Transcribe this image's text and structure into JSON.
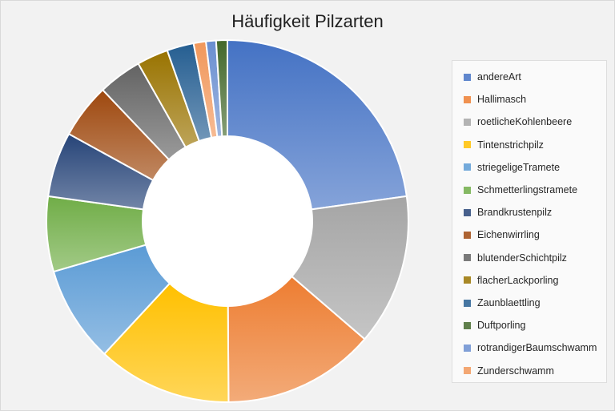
{
  "chart_data": {
    "type": "pie",
    "variant": "doughnut",
    "title": "Häufigkeit Pilzarten",
    "legend_position": "right",
    "slices": [
      {
        "label": "andereArt",
        "value": 22.8,
        "color": "#4472c4"
      },
      {
        "label": "Hallimasch",
        "value": 13.6,
        "color": "#ed7d31"
      },
      {
        "label": "roetlicheKohlenbeere",
        "value": 13.5,
        "color": "#a5a5a5"
      },
      {
        "label": "Tintenstrichpilz",
        "value": 12.0,
        "color": "#ffc000"
      },
      {
        "label": "striegeligeTramete",
        "value": 8.6,
        "color": "#5b9bd5"
      },
      {
        "label": "Schmetterlingstramete",
        "value": 6.7,
        "color": "#70ad47"
      },
      {
        "label": "Brandkrustenpilz",
        "value": 5.8,
        "color": "#264478"
      },
      {
        "label": "Eichenwirrling",
        "value": 4.9,
        "color": "#9e480e"
      },
      {
        "label": "blutenderSchichtpilz",
        "value": 3.9,
        "color": "#636363"
      },
      {
        "label": "flacherLackporling",
        "value": 2.8,
        "color": "#997300"
      },
      {
        "label": "Zaunblaettling",
        "value": 2.4,
        "color": "#255e91"
      },
      {
        "label": "Duftporling",
        "value": 1.0,
        "color": "#43682b"
      },
      {
        "label": "rotrandigerBaumschwamm",
        "value": 0.9,
        "color": "#698ed0"
      },
      {
        "label": "Zunderschwamm",
        "value": 1.1,
        "color": "#f1975a"
      }
    ],
    "legend_order": [
      0,
      1,
      2,
      3,
      4,
      5,
      6,
      7,
      8,
      9,
      10,
      11,
      12,
      13
    ],
    "draw_order": [
      0,
      2,
      1,
      3,
      4,
      5,
      6,
      7,
      8,
      9,
      10,
      13,
      12,
      11
    ]
  }
}
